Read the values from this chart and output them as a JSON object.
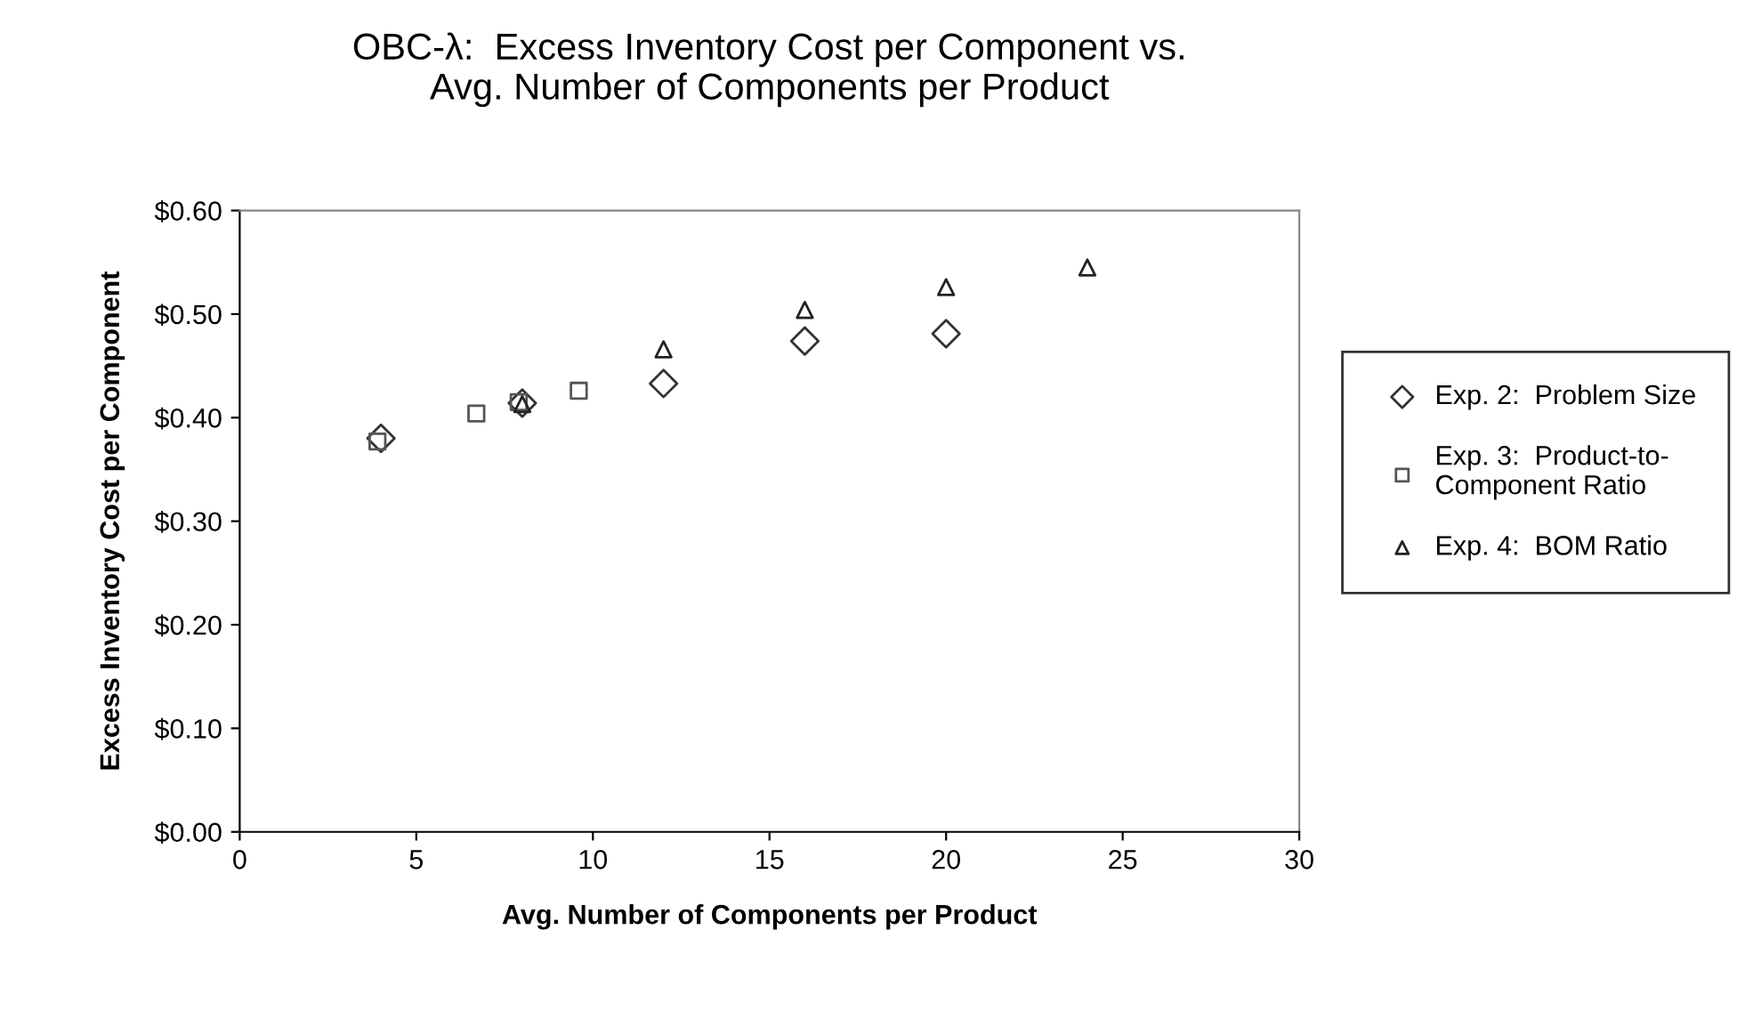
{
  "chart_data": {
    "type": "scatter",
    "title": "OBC-λ:  Excess Inventory Cost per Component vs.\nAvg. Number of Components per Product",
    "xlabel": "Avg. Number of Components per Product",
    "ylabel": "Excess Inventory Cost per Component",
    "series": [
      {
        "name": "Exp. 2:  Problem Size",
        "color": "#333333",
        "marker": "diamond",
        "x": [
          4,
          8,
          12,
          16,
          20
        ],
        "values": [
          0.38,
          0.414,
          0.433,
          0.474,
          0.481
        ]
      },
      {
        "name": "Exp. 3:  Product-to-\nComponent Ratio",
        "color": "#555555",
        "marker": "square",
        "x": [
          3.9,
          6.7,
          7.9,
          9.6
        ],
        "values": [
          0.377,
          0.404,
          0.415,
          0.426
        ]
      },
      {
        "name": "Exp. 4:  BOM Ratio",
        "color": "#222222",
        "marker": "triangle",
        "x": [
          8,
          12,
          16,
          20,
          24
        ],
        "values": [
          0.413,
          0.466,
          0.504,
          0.526,
          0.545
        ]
      }
    ],
    "xlim": [
      0,
      30
    ],
    "xticks": [
      0,
      5,
      10,
      15,
      20,
      25,
      30
    ],
    "ylim": [
      0,
      0.6
    ],
    "yticks": [
      {
        "value": 0,
        "label": "$0.00"
      },
      {
        "value": 0.1,
        "label": "$0.10"
      },
      {
        "value": 0.2,
        "label": "$0.20"
      },
      {
        "value": 0.3,
        "label": "$0.30"
      },
      {
        "value": 0.4,
        "label": "$0.40"
      },
      {
        "value": 0.5,
        "label": "$0.50"
      },
      {
        "value": 0.6,
        "label": "$0.60"
      }
    ],
    "grid": false,
    "legend": "right"
  }
}
